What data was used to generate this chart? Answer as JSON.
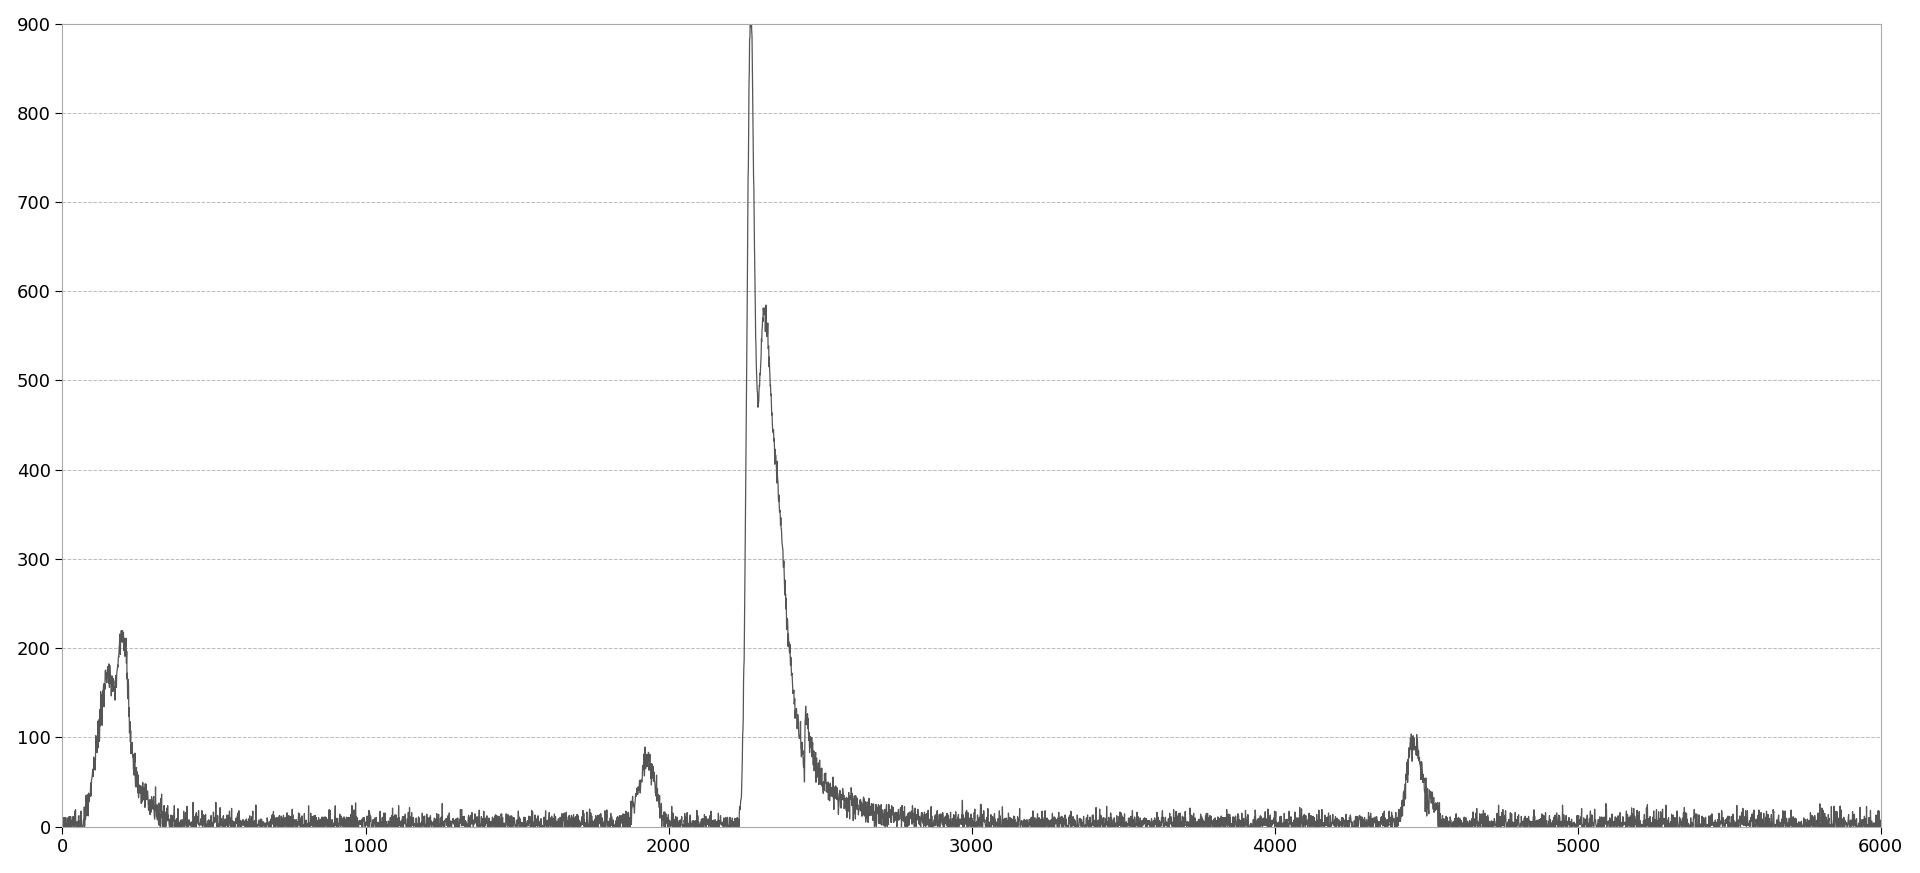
{
  "xlim": [
    0,
    6000
  ],
  "ylim": [
    0,
    900
  ],
  "xticks": [
    0,
    1000,
    2000,
    3000,
    4000,
    5000,
    6000
  ],
  "yticks": [
    0,
    100,
    200,
    300,
    400,
    500,
    600,
    700,
    800,
    900
  ],
  "line_color": "#555555",
  "line_width": 0.9,
  "background_color": "#ffffff",
  "grid_color": "#bbbbbb",
  "noise_level": 8,
  "seed": 42,
  "figsize": [
    19.2,
    8.73
  ],
  "dpi": 100
}
